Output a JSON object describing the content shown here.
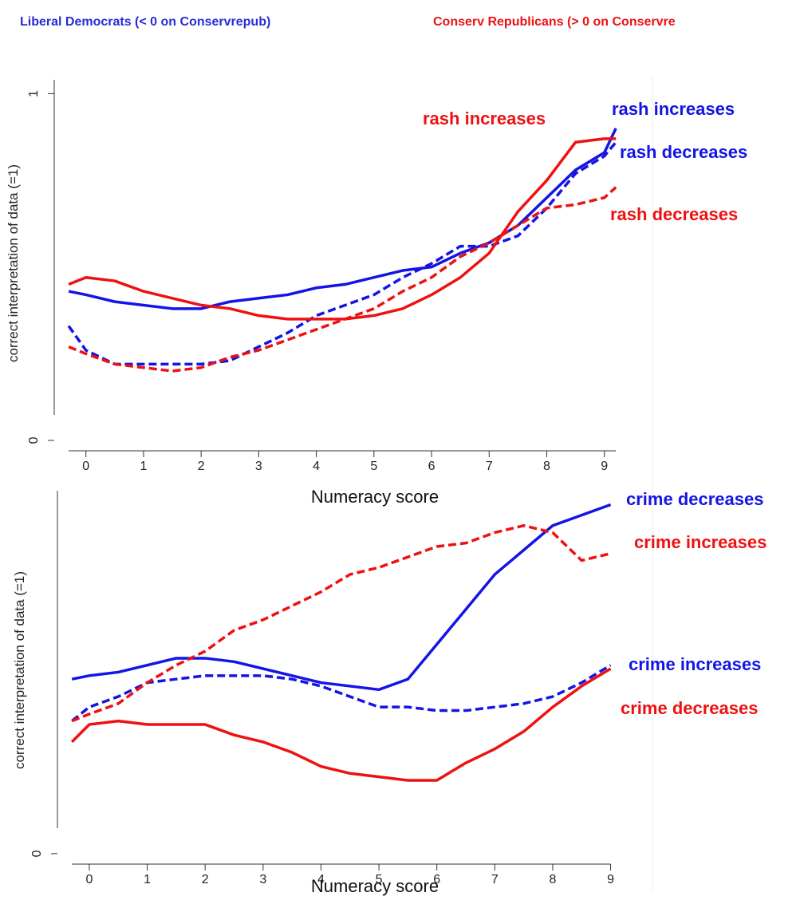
{
  "header": {
    "left": "Liberal Democrats (< 0 on Conservrepub)",
    "right": "Conserv Republicans (> 0 on Conservre"
  },
  "chart_data": [
    {
      "type": "line",
      "xlabel": "Numeracy score",
      "ylabel": "correct interpretation of data (=1)",
      "x": [
        -0.3,
        0,
        0.5,
        1,
        1.5,
        2,
        2.5,
        3,
        3.5,
        4,
        4.5,
        5,
        5.5,
        6,
        6.5,
        7,
        7.5,
        8,
        8.5,
        9,
        9.2
      ],
      "xlim": [
        -0.55,
        9.35
      ],
      "xticks": [
        0,
        1,
        2,
        3,
        4,
        5,
        6,
        7,
        8,
        9
      ],
      "ylim": [
        -0.03,
        1.04
      ],
      "yticks": [
        0,
        1
      ],
      "series": [
        {
          "name": "rash increases",
          "color": "#1414e6",
          "dashed": false,
          "values": [
            0.43,
            0.42,
            0.4,
            0.39,
            0.38,
            0.38,
            0.4,
            0.41,
            0.42,
            0.44,
            0.45,
            0.47,
            0.49,
            0.5,
            0.54,
            0.57,
            0.62,
            0.7,
            0.78,
            0.83,
            0.9
          ]
        },
        {
          "name": "rash decreases",
          "color": "#1414e6",
          "dashed": true,
          "values": [
            0.33,
            0.26,
            0.22,
            0.22,
            0.22,
            0.22,
            0.23,
            0.27,
            0.31,
            0.36,
            0.39,
            0.42,
            0.47,
            0.51,
            0.56,
            0.56,
            0.59,
            0.67,
            0.77,
            0.82,
            0.86
          ]
        },
        {
          "name": "rash increases",
          "color": "#ee1111",
          "dashed": false,
          "values": [
            0.45,
            0.47,
            0.46,
            0.43,
            0.41,
            0.39,
            0.38,
            0.36,
            0.35,
            0.35,
            0.35,
            0.36,
            0.38,
            0.42,
            0.47,
            0.54,
            0.66,
            0.75,
            0.86,
            0.87,
            0.87
          ]
        },
        {
          "name": "rash decreases",
          "color": "#ee1111",
          "dashed": true,
          "values": [
            0.27,
            0.25,
            0.22,
            0.21,
            0.2,
            0.21,
            0.24,
            0.26,
            0.29,
            0.32,
            0.35,
            0.38,
            0.43,
            0.47,
            0.53,
            0.57,
            0.62,
            0.67,
            0.68,
            0.7,
            0.73
          ]
        }
      ]
    },
    {
      "type": "line",
      "xlabel": "Numeracy score",
      "ylabel": "correct interpretation of data (=1)",
      "x": [
        -0.3,
        0,
        0.5,
        1,
        1.5,
        2,
        2.5,
        3,
        3.5,
        4,
        4.5,
        5,
        5.5,
        6,
        6.5,
        7,
        7.5,
        8,
        8.5,
        9
      ],
      "xlim": [
        -0.55,
        9.35
      ],
      "xticks": [
        0,
        1,
        2,
        3,
        4,
        5,
        6,
        7,
        8,
        9
      ],
      "ylim": [
        -0.03,
        1.04
      ],
      "yticks": [
        0
      ],
      "series": [
        {
          "name": "crime decreases",
          "color": "#1414e6",
          "dashed": false,
          "values": [
            0.5,
            0.51,
            0.52,
            0.54,
            0.56,
            0.56,
            0.55,
            0.53,
            0.51,
            0.49,
            0.48,
            0.47,
            0.5,
            0.6,
            0.7,
            0.8,
            0.87,
            0.94,
            0.97,
            1.0
          ]
        },
        {
          "name": "crime increases",
          "color": "#1414e6",
          "dashed": true,
          "values": [
            0.38,
            0.42,
            0.45,
            0.49,
            0.5,
            0.51,
            0.51,
            0.51,
            0.5,
            0.48,
            0.45,
            0.42,
            0.42,
            0.41,
            0.41,
            0.42,
            0.43,
            0.45,
            0.49,
            0.54
          ]
        },
        {
          "name": "crime decreases",
          "color": "#ee1111",
          "dashed": false,
          "values": [
            0.32,
            0.37,
            0.38,
            0.37,
            0.37,
            0.37,
            0.34,
            0.32,
            0.29,
            0.25,
            0.23,
            0.22,
            0.21,
            0.21,
            0.26,
            0.3,
            0.35,
            0.42,
            0.48,
            0.53
          ]
        },
        {
          "name": "crime increases",
          "color": "#ee1111",
          "dashed": true,
          "values": [
            0.38,
            0.4,
            0.43,
            0.49,
            0.54,
            0.58,
            0.64,
            0.67,
            0.71,
            0.75,
            0.8,
            0.82,
            0.85,
            0.88,
            0.89,
            0.92,
            0.94,
            0.92,
            0.84,
            0.86
          ]
        }
      ]
    }
  ]
}
